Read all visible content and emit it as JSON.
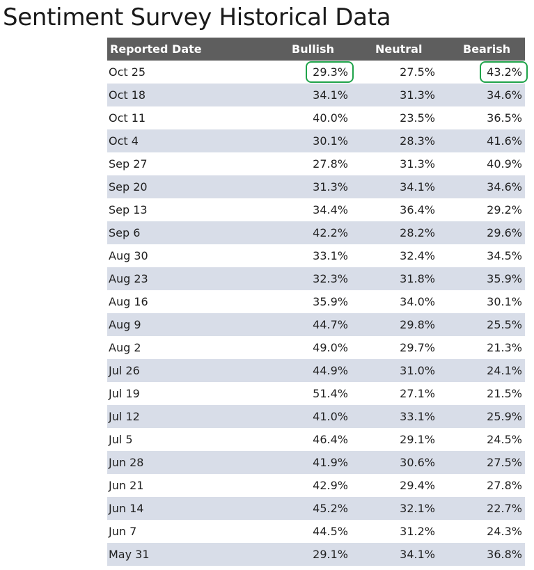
{
  "title": "Sentiment Survey Historical Data",
  "colors": {
    "header_bg": "#5e5e5e",
    "stripe_bg": "#d8dde8",
    "highlight": "#1fa34a"
  },
  "table": {
    "headers": [
      "Reported Date",
      "Bullish",
      "Neutral",
      "Bearish"
    ],
    "highlighted_cells": [
      {
        "row": 0,
        "column": "bullish"
      },
      {
        "row": 0,
        "column": "bearish"
      }
    ],
    "rows": [
      {
        "date": "Oct 25",
        "bullish": "29.3%",
        "neutral": "27.5%",
        "bearish": "43.2%"
      },
      {
        "date": "Oct 18",
        "bullish": "34.1%",
        "neutral": "31.3%",
        "bearish": "34.6%"
      },
      {
        "date": "Oct 11",
        "bullish": "40.0%",
        "neutral": "23.5%",
        "bearish": "36.5%"
      },
      {
        "date": "Oct 4",
        "bullish": "30.1%",
        "neutral": "28.3%",
        "bearish": "41.6%"
      },
      {
        "date": "Sep 27",
        "bullish": "27.8%",
        "neutral": "31.3%",
        "bearish": "40.9%"
      },
      {
        "date": "Sep 20",
        "bullish": "31.3%",
        "neutral": "34.1%",
        "bearish": "34.6%"
      },
      {
        "date": "Sep 13",
        "bullish": "34.4%",
        "neutral": "36.4%",
        "bearish": "29.2%"
      },
      {
        "date": "Sep 6",
        "bullish": "42.2%",
        "neutral": "28.2%",
        "bearish": "29.6%"
      },
      {
        "date": "Aug 30",
        "bullish": "33.1%",
        "neutral": "32.4%",
        "bearish": "34.5%"
      },
      {
        "date": "Aug 23",
        "bullish": "32.3%",
        "neutral": "31.8%",
        "bearish": "35.9%"
      },
      {
        "date": "Aug 16",
        "bullish": "35.9%",
        "neutral": "34.0%",
        "bearish": "30.1%"
      },
      {
        "date": "Aug 9",
        "bullish": "44.7%",
        "neutral": "29.8%",
        "bearish": "25.5%"
      },
      {
        "date": "Aug 2",
        "bullish": "49.0%",
        "neutral": "29.7%",
        "bearish": "21.3%"
      },
      {
        "date": "Jul 26",
        "bullish": "44.9%",
        "neutral": "31.0%",
        "bearish": "24.1%"
      },
      {
        "date": "Jul 19",
        "bullish": "51.4%",
        "neutral": "27.1%",
        "bearish": "21.5%"
      },
      {
        "date": "Jul 12",
        "bullish": "41.0%",
        "neutral": "33.1%",
        "bearish": "25.9%"
      },
      {
        "date": "Jul 5",
        "bullish": "46.4%",
        "neutral": "29.1%",
        "bearish": "24.5%"
      },
      {
        "date": "Jun 28",
        "bullish": "41.9%",
        "neutral": "30.6%",
        "bearish": "27.5%"
      },
      {
        "date": "Jun 21",
        "bullish": "42.9%",
        "neutral": "29.4%",
        "bearish": "27.8%"
      },
      {
        "date": "Jun 14",
        "bullish": "45.2%",
        "neutral": "32.1%",
        "bearish": "22.7%"
      },
      {
        "date": "Jun 7",
        "bullish": "44.5%",
        "neutral": "31.2%",
        "bearish": "24.3%"
      },
      {
        "date": "May 31",
        "bullish": "29.1%",
        "neutral": "34.1%",
        "bearish": "36.8%"
      }
    ]
  }
}
